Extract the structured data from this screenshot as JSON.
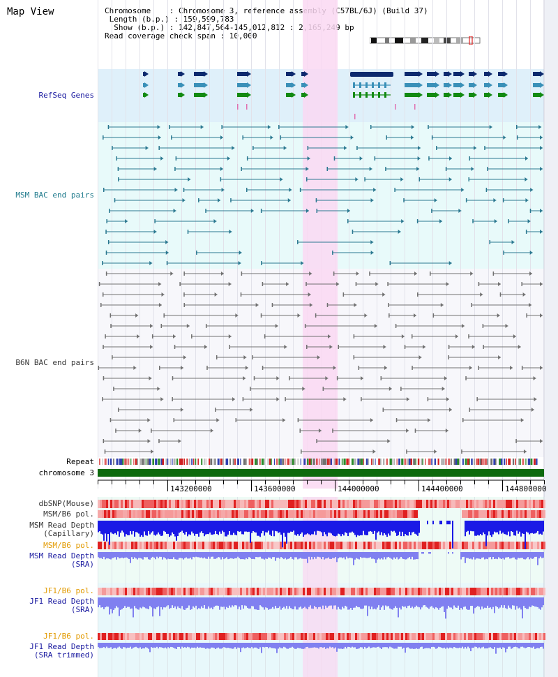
{
  "page": {
    "title": "Map View"
  },
  "info": {
    "chromosome": "Chromosome    : Chromosome 3, reference assembly (C57BL/6J) (Build 37)",
    "length": "Length (b.p.) : 159,599,783",
    "show": "Show (b.p.) : 142,847,564-145,012,812 : 2,165,249 bp",
    "coverage": "Read coverage check span : 10,000"
  },
  "tracks": {
    "refseq": "RefSeq Genes",
    "msm_bac": "MSM BAC end pairs",
    "b6n_bac": "B6N BAC end pairs",
    "repeat": "Repeat",
    "chromosome": "chromosome 3",
    "dbsnp": "dbSNP(Mouse)",
    "msm_b6_pol_1": "MSM/B6 pol.",
    "msm_read_depth_cap": "MSM Read Depth\n(Capillary)",
    "msm_b6_pol_2": "MSM/B6 pol.",
    "msm_read_depth_sra": "MSM Read Depth\n(SRA)",
    "jf1_b6_pol_1": "JF1/B6 pol.",
    "jf1_read_depth_sra": "JF1 Read Depth\n(SRA)",
    "jf1_b6_pol_2": "JF1/B6 pol.",
    "jf1_read_depth_trim": "JF1 Read Depth\n(SRA trimmed)"
  },
  "axis": {
    "ticks": [
      "143200000",
      "143600000",
      "144000000",
      "144400000",
      "144800000"
    ]
  },
  "colors": {
    "refseq_bg": "#dff0fa",
    "msm_bg": "#e8fafa",
    "b6n_bg": "#f7f7fb",
    "highlight": "#fad8f2",
    "chromosome_bar": "#0d6a0d",
    "refseq_dark": "#0d2a6e",
    "refseq_mid": "#3a90b8",
    "refseq_green": "#128a12",
    "msm_pair": "#2a7890",
    "b6n_pair": "#707070",
    "depth_blue": "#1a1ae6",
    "depth_light": "#8080f0",
    "label_blue": "#1a1aa0",
    "label_msm": "#1f7a8c",
    "label_b6n": "#3a3a3a",
    "label_orange": "#e29a00"
  }
}
